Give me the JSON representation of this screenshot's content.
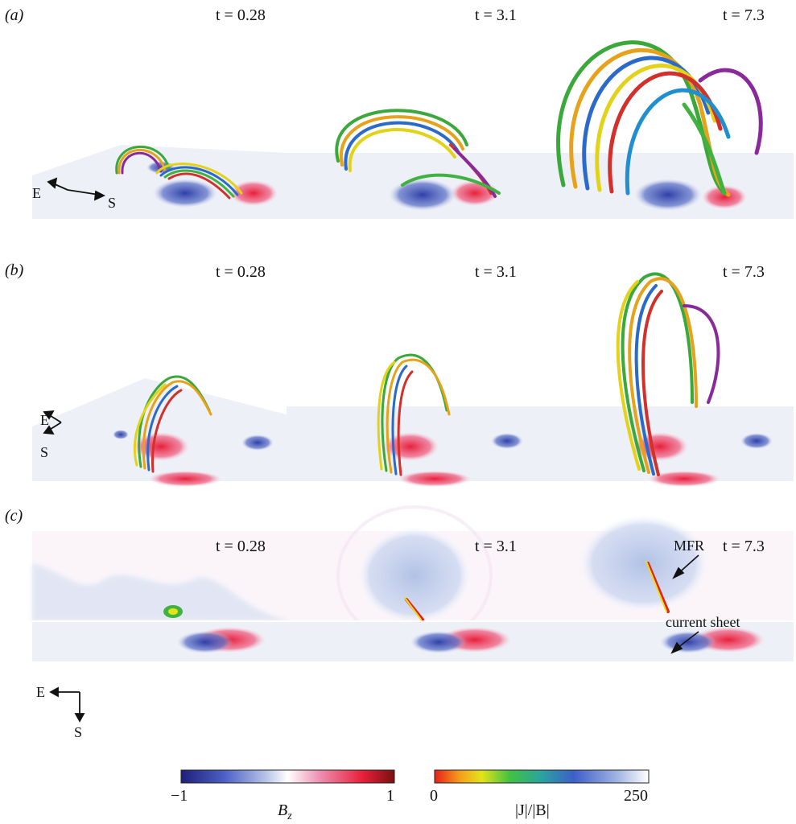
{
  "rows": [
    {
      "label": "(a)",
      "times": [
        "t = 0.28",
        "t = 3.1",
        "t = 7.3"
      ]
    },
    {
      "label": "(b)",
      "times": [
        "t = 0.28",
        "t = 3.1",
        "t = 7.3"
      ]
    },
    {
      "label": "(c)",
      "times": [
        "t = 0.28",
        "t = 3.1",
        "t = 7.3"
      ]
    }
  ],
  "orientation": {
    "east": "E",
    "south": "S"
  },
  "annotations": {
    "mfr": "MFR",
    "current_sheet": "current sheet"
  },
  "colorbars": {
    "bz": {
      "min": "−1",
      "max": "1",
      "label": "B",
      "label_sub": "z",
      "colors": [
        "#1f1f7a",
        "#4a5fc4",
        "#b9c4e8",
        "#ffffff",
        "#ee8fb0",
        "#e8203a",
        "#7a1010"
      ]
    },
    "j": {
      "min": "0",
      "max": "250",
      "label": "|J|/|B|",
      "colors": [
        "#e8201a",
        "#f4a11a",
        "#e3e31a",
        "#41c241",
        "#2aa3a0",
        "#3d5fc8",
        "#9fb2e2",
        "#ffffff"
      ]
    }
  },
  "colors": {
    "negative": "#2f4fb8",
    "positive": "#e8203a",
    "background": "#ffffff"
  }
}
